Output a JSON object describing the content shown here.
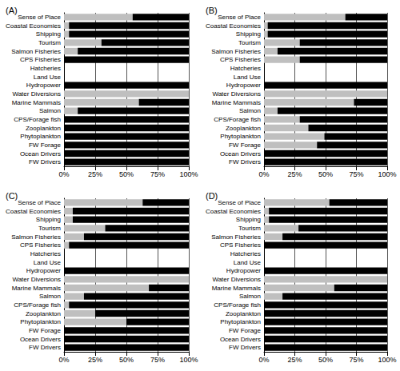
{
  "chart_data": [
    {
      "type": "bar",
      "title": "(A)",
      "orientation": "horizontal",
      "stacked": true,
      "grid": true,
      "categories": [
        "Sense of Place",
        "Coastal Economies",
        "Shipping",
        "Tourism",
        "Salmon Fisheries",
        "CPS Fisheries",
        "Hatcheries",
        "Land Use",
        "Hydropower",
        "Water Diversions",
        "Marine Mammals",
        "Salmon",
        "CPS/Forage fish",
        "Zooplankton",
        "Phytoplankton",
        "FW Forage",
        "Ocean Drivers",
        "FW Drivers"
      ],
      "series": [
        {
          "color": "#bfbfbf",
          "values": [
            55,
            4,
            4,
            30,
            11,
            0,
            null,
            null,
            0,
            100,
            60,
            11,
            0,
            0,
            0,
            0,
            0,
            0
          ]
        },
        {
          "color": "#000000",
          "values": [
            45,
            96,
            96,
            70,
            89,
            100,
            null,
            null,
            100,
            0,
            40,
            89,
            100,
            100,
            100,
            100,
            100,
            100
          ]
        }
      ],
      "xlim": [
        0,
        100
      ],
      "xticks": [
        {
          "value": 0,
          "label": "0%"
        },
        {
          "value": 25,
          "label": "25%"
        },
        {
          "value": 50,
          "label": "50%"
        },
        {
          "value": 75,
          "label": "75%"
        },
        {
          "value": 100,
          "label": "100%"
        }
      ]
    },
    {
      "type": "bar",
      "title": "(B)",
      "orientation": "horizontal",
      "stacked": true,
      "grid": true,
      "categories": [
        "Sense of Place",
        "Coastal Economies",
        "Shipping",
        "Tourism",
        "Salmon Fisheries",
        "CPS Fisheries",
        "Hatcheries",
        "Land Use",
        "Hydropower",
        "Water Diversions",
        "Marine Mammals",
        "Salmon",
        "CPS/Forage fish",
        "Zooplankton",
        "Phytoplankton",
        "FW Forage",
        "Ocean Drivers",
        "FW Drivers"
      ],
      "series": [
        {
          "color": "#bfbfbf",
          "values": [
            66,
            3,
            3,
            29,
            11,
            29,
            null,
            null,
            0,
            100,
            73,
            11,
            29,
            36,
            49,
            43,
            0,
            0
          ]
        },
        {
          "color": "#000000",
          "values": [
            34,
            97,
            97,
            71,
            89,
            71,
            null,
            null,
            100,
            0,
            27,
            89,
            71,
            64,
            51,
            57,
            100,
            100
          ]
        }
      ],
      "xlim": [
        0,
        100
      ],
      "xticks": [
        {
          "value": 0,
          "label": "0%"
        },
        {
          "value": 25,
          "label": "25%"
        },
        {
          "value": 50,
          "label": "50%"
        },
        {
          "value": 75,
          "label": "75%"
        },
        {
          "value": 100,
          "label": "100%"
        }
      ]
    },
    {
      "type": "bar",
      "title": "(C)",
      "orientation": "horizontal",
      "stacked": true,
      "grid": true,
      "categories": [
        "Sense of Place",
        "Coastal Economies",
        "Shipping",
        "Tourism",
        "Salmon Fisheries",
        "CPS Fisheries",
        "Hatcheries",
        "Land Use",
        "Hydropower",
        "Water Diversions",
        "Marine Mammals",
        "Salmon",
        "CPS/Forage fish",
        "Zooplankton",
        "Phytoplankton",
        "FW Forage",
        "Ocean Drivers",
        "FW Drivers"
      ],
      "series": [
        {
          "color": "#bfbfbf",
          "values": [
            63,
            7,
            7,
            33,
            16,
            4,
            null,
            null,
            0,
            100,
            68,
            16,
            4,
            25,
            50,
            0,
            0,
            0
          ]
        },
        {
          "color": "#000000",
          "values": [
            37,
            93,
            93,
            67,
            84,
            96,
            null,
            null,
            100,
            0,
            32,
            84,
            96,
            75,
            50,
            100,
            100,
            100
          ]
        }
      ],
      "xlim": [
        0,
        100
      ],
      "xticks": [
        {
          "value": 0,
          "label": "0%"
        },
        {
          "value": 25,
          "label": "25%"
        },
        {
          "value": 50,
          "label": "50%"
        },
        {
          "value": 75,
          "label": "75%"
        },
        {
          "value": 100,
          "label": "100%"
        }
      ]
    },
    {
      "type": "bar",
      "title": "(D)",
      "orientation": "horizontal",
      "stacked": true,
      "grid": true,
      "categories": [
        "Sense of Place",
        "Coastal Economies",
        "Shipping",
        "Tourism",
        "Salmon Fisheries",
        "CPS Fisheries",
        "Hatcheries",
        "Land Use",
        "Hydropower",
        "Water Diversions",
        "Marine Mammals",
        "Salmon",
        "CPS/Forage fish",
        "Zooplankton",
        "Phytoplankton",
        "FW Forage",
        "Ocean Drivers",
        "FW Drivers"
      ],
      "series": [
        {
          "color": "#bfbfbf",
          "values": [
            53,
            4,
            4,
            28,
            15,
            0,
            null,
            null,
            0,
            100,
            57,
            15,
            0,
            0,
            0,
            0,
            0,
            0
          ]
        },
        {
          "color": "#000000",
          "values": [
            47,
            96,
            96,
            72,
            85,
            100,
            null,
            null,
            100,
            0,
            43,
            85,
            100,
            100,
            100,
            100,
            100,
            100
          ]
        }
      ],
      "xlim": [
        0,
        100
      ],
      "xticks": [
        {
          "value": 0,
          "label": "0%"
        },
        {
          "value": 25,
          "label": "25%"
        },
        {
          "value": 50,
          "label": "50%"
        },
        {
          "value": 75,
          "label": "75%"
        },
        {
          "value": 100,
          "label": "100%"
        }
      ]
    }
  ]
}
